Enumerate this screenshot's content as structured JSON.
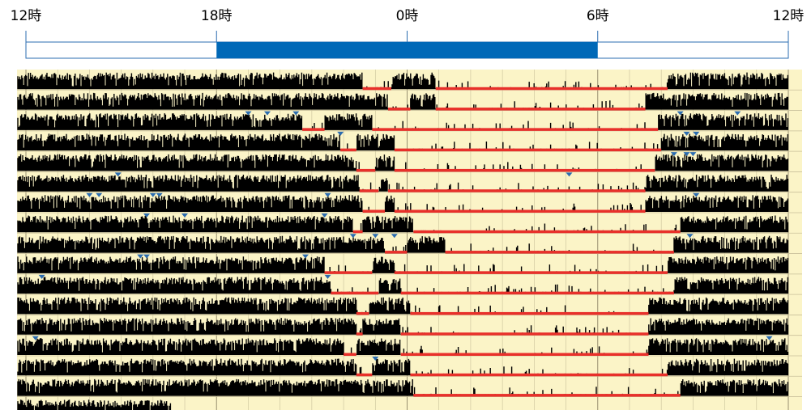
{
  "chart_data": {
    "type": "actogram",
    "time_axis": {
      "ticks": [
        "12時",
        "18時",
        "0時",
        "6時",
        "12時"
      ],
      "start_hour": 12,
      "span_hours": 24
    },
    "dark_period": {
      "start": "18時",
      "end": "6時",
      "color": "#0068b7"
    },
    "row_count": 17,
    "colors": {
      "background": "#fbf4c7",
      "activity": "#000000",
      "sleep_bar": "#e8302a",
      "marker": "#2b6cb0",
      "grid": "#c9c09a",
      "axis": "#2b6cb0"
    },
    "grid": true,
    "rows": [
      {
        "sleep": [
          [
            22.6,
            23.5
          ],
          [
            24.9,
            8.2
          ]
        ],
        "markers": []
      },
      {
        "sleep": [
          [
            23.4,
            24.1
          ],
          [
            24.9,
            7.5
          ]
        ],
        "markers": []
      },
      {
        "sleep": [
          [
            20.7,
            21.4
          ],
          [
            22.9,
            7.9
          ]
        ],
        "markers": [
          19.0,
          19.6,
          20.5,
          8.6,
          10.4
        ]
      },
      {
        "sleep": [
          [
            21.9,
            22.4
          ],
          [
            23.6,
            8.0
          ]
        ],
        "markers": [
          21.9,
          8.8,
          9.1
        ]
      },
      {
        "sleep": [
          [
            22.4,
            23.0
          ],
          [
            23.6,
            7.8
          ]
        ],
        "markers": [
          8.4,
          8.8,
          9.0
        ]
      },
      {
        "sleep": [
          [
            22.5,
            23.1
          ],
          [
            23.4,
            7.5
          ]
        ],
        "markers": [
          14.9,
          5.1
        ]
      },
      {
        "sleep": [
          [
            22.6,
            23.3
          ],
          [
            23.6,
            7.5
          ]
        ],
        "markers": [
          14.0,
          14.3,
          16.0,
          16.2,
          21.5,
          9.1
        ]
      },
      {
        "sleep": [
          [
            22.3,
            22.6
          ],
          [
            0.2,
            8.6
          ]
        ],
        "markers": [
          15.8,
          17.0,
          21.4
        ]
      },
      {
        "sleep": [
          [
            23.3,
            24.0
          ],
          [
            1.2,
            8.4
          ]
        ],
        "markers": [
          22.3,
          23.0,
          23.6,
          8.9
        ]
      },
      {
        "sleep": [
          [
            21.4,
            22.9
          ],
          [
            23.6,
            8.2
          ]
        ],
        "markers": [
          15.6,
          15.8,
          20.8
        ]
      },
      {
        "sleep": [
          [
            21.6,
            23.1
          ],
          [
            23.8,
            8.4
          ]
        ],
        "markers": [
          12.5,
          21.5
        ]
      },
      {
        "sleep": [
          [
            22.4,
            22.8
          ],
          [
            24.1,
            7.6
          ]
        ],
        "markers": []
      },
      {
        "sleep": [
          [
            22.4,
            22.6
          ],
          [
            23.8,
            7.6
          ]
        ],
        "markers": []
      },
      {
        "sleep": [
          [
            22.0,
            22.4
          ],
          [
            23.8,
            7.6
          ]
        ],
        "markers": [
          12.3,
          11.4
        ]
      },
      {
        "sleep": [
          [
            22.4,
            22.9
          ],
          [
            24.1,
            8.2
          ]
        ],
        "markers": [
          23.0
        ]
      },
      {
        "sleep": [
          [
            24.2,
            8.6
          ]
        ],
        "markers": []
      },
      {
        "sleep": [],
        "markers": [],
        "data_until": 16.6
      }
    ]
  }
}
